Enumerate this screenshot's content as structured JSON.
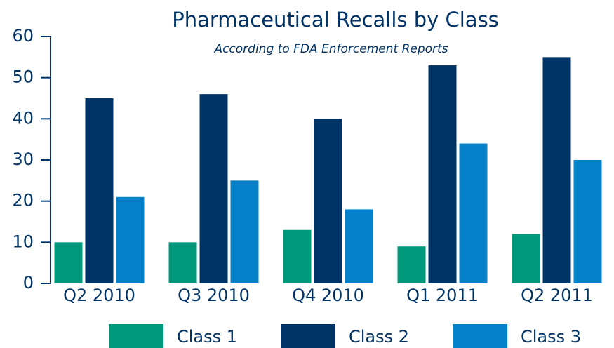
{
  "chart_data": {
    "type": "bar",
    "title": "Pharmaceutical Recalls by Class",
    "subtitle": "According to FDA Enforcement Reports",
    "categories": [
      "Q2 2010",
      "Q3 2010",
      "Q4 2010",
      "Q1 2011",
      "Q2 2011"
    ],
    "series": [
      {
        "name": "Class 1",
        "color": "#00987a",
        "values": [
          10,
          10,
          13,
          9,
          12
        ]
      },
      {
        "name": "Class 2",
        "color": "#003366",
        "values": [
          45,
          46,
          40,
          53,
          55
        ]
      },
      {
        "name": "Class 3",
        "color": "#0581c9",
        "values": [
          21,
          25,
          18,
          34,
          30
        ]
      }
    ],
    "ylim": [
      0,
      60
    ],
    "yticks": [
      0,
      10,
      20,
      30,
      40,
      50,
      60
    ],
    "grid": false,
    "legend": "bottom"
  }
}
